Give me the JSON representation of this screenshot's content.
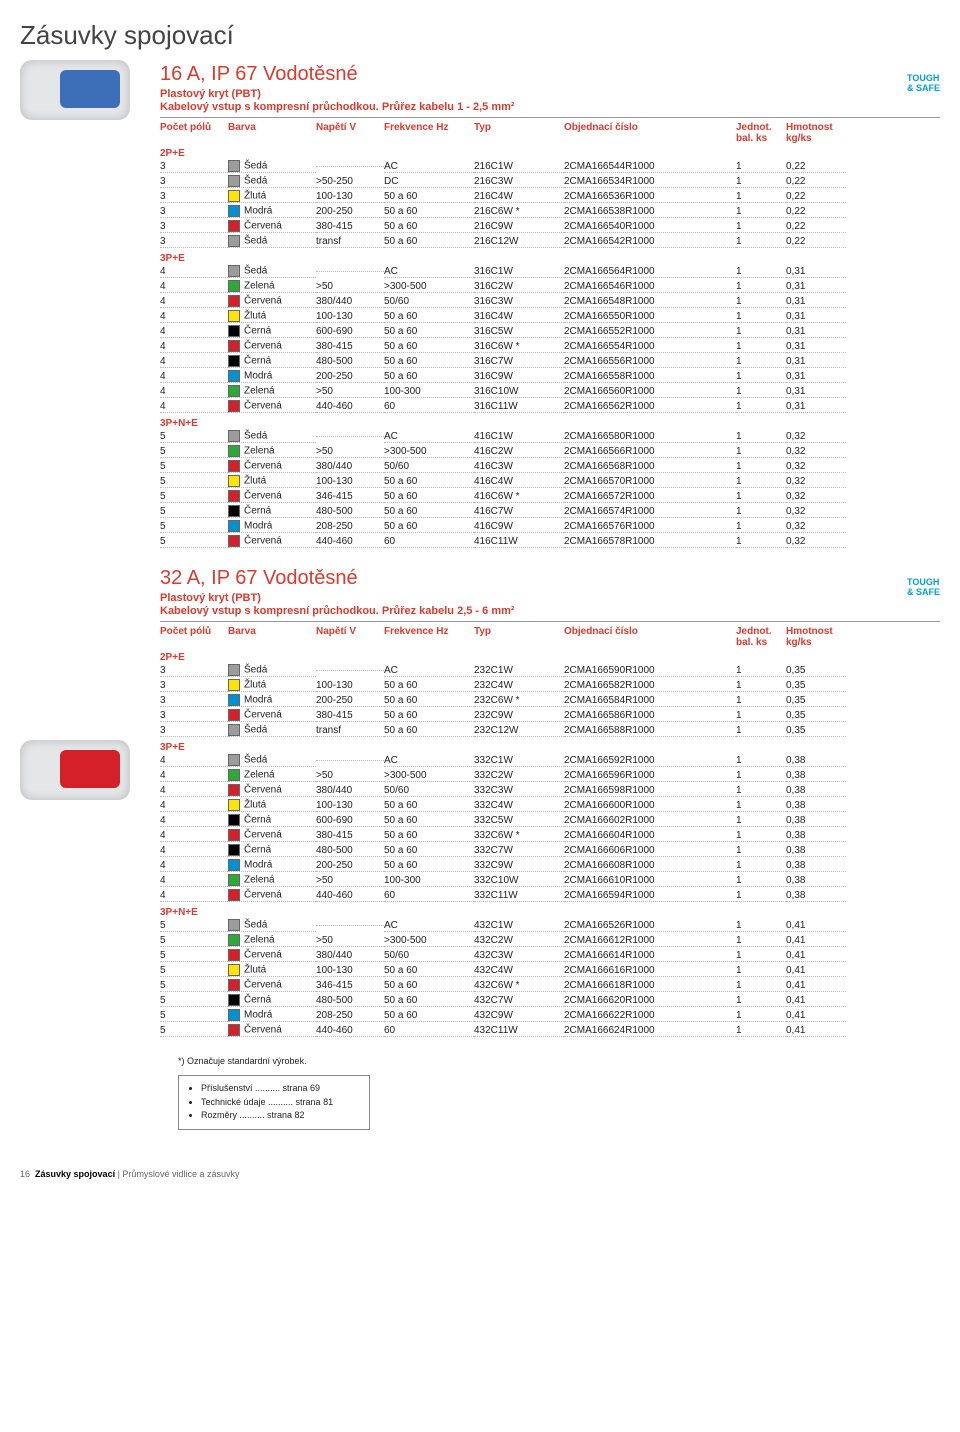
{
  "page_title": "Zásuvky spojovací",
  "tough_safe": {
    "line1": "TOUGH",
    "line2": "& SAFE"
  },
  "header_cols": {
    "poles": "Počet pólů",
    "color": "Barva",
    "volt": "Napětí V",
    "freq": "Frekvence Hz",
    "type": "Typ",
    "order": "Objednací číslo",
    "pack": "Jednot. bal. ks",
    "weight": "Hmotnost kg/ks"
  },
  "colors": {
    "Šedá": "#9c9c9c",
    "Žlutá": "#ffe400",
    "Modrá": "#0091d4",
    "Červená": "#d5202a",
    "Zelená": "#2ea836",
    "Černá": "#000000"
  },
  "sections": [
    {
      "title": "16 A, IP 67 Vodotěsné",
      "sub1": "Plastový kryt (PBT)",
      "sub2": "Kabelový vstup s kompresní průchodkou. Průřez kabelu 1 - 2,5 mm²",
      "plug_color": "#3d6fb8",
      "groups": [
        {
          "label": "2P+E",
          "rows": [
            [
              "3",
              "Šedá",
              "",
              "AC",
              "216C1W",
              "2CMA166544R1000",
              "1",
              "0,22"
            ],
            [
              "3",
              "Šedá",
              ">50-250",
              "DC",
              "216C3W",
              "2CMA166534R1000",
              "1",
              "0,22"
            ],
            [
              "3",
              "Žlutá",
              "100-130",
              "50 a 60",
              "216C4W",
              "2CMA166536R1000",
              "1",
              "0,22"
            ],
            [
              "3",
              "Modrá",
              "200-250",
              "50 a 60",
              "216C6W *",
              "2CMA166538R1000",
              "1",
              "0,22"
            ],
            [
              "3",
              "Červená",
              "380-415",
              "50 a 60",
              "216C9W",
              "2CMA166540R1000",
              "1",
              "0,22"
            ],
            [
              "3",
              "Šedá",
              "transf",
              "50 a 60",
              "216C12W",
              "2CMA166542R1000",
              "1",
              "0,22"
            ]
          ]
        },
        {
          "label": "3P+E",
          "rows": [
            [
              "4",
              "Šedá",
              "",
              "AC",
              "316C1W",
              "2CMA166564R1000",
              "1",
              "0,31"
            ],
            [
              "4",
              "Zelená",
              ">50",
              ">300-500",
              "316C2W",
              "2CMA166546R1000",
              "1",
              "0,31"
            ],
            [
              "4",
              "Červená",
              "380/440",
              "50/60",
              "316C3W",
              "2CMA166548R1000",
              "1",
              "0,31"
            ],
            [
              "4",
              "Žlutá",
              "100-130",
              "50 a 60",
              "316C4W",
              "2CMA166550R1000",
              "1",
              "0,31"
            ],
            [
              "4",
              "Černá",
              "600-690",
              "50 a 60",
              "316C5W",
              "2CMA166552R1000",
              "1",
              "0,31"
            ],
            [
              "4",
              "Červená",
              "380-415",
              "50 a 60",
              "316C6W *",
              "2CMA166554R1000",
              "1",
              "0,31"
            ],
            [
              "4",
              "Černá",
              "480-500",
              "50 a 60",
              "316C7W",
              "2CMA166556R1000",
              "1",
              "0,31"
            ],
            [
              "4",
              "Modrá",
              "200-250",
              "50 a 60",
              "316C9W",
              "2CMA166558R1000",
              "1",
              "0,31"
            ],
            [
              "4",
              "Zelená",
              ">50",
              "100-300",
              "316C10W",
              "2CMA166560R1000",
              "1",
              "0,31"
            ],
            [
              "4",
              "Červená",
              "440-460",
              "60",
              "316C11W",
              "2CMA166562R1000",
              "1",
              "0,31"
            ]
          ]
        },
        {
          "label": "3P+N+E",
          "rows": [
            [
              "5",
              "Šedá",
              "",
              "AC",
              "416C1W",
              "2CMA166580R1000",
              "1",
              "0,32"
            ],
            [
              "5",
              "Zelená",
              ">50",
              ">300-500",
              "416C2W",
              "2CMA166566R1000",
              "1",
              "0,32"
            ],
            [
              "5",
              "Červená",
              "380/440",
              "50/60",
              "416C3W",
              "2CMA166568R1000",
              "1",
              "0,32"
            ],
            [
              "5",
              "Žlutá",
              "100-130",
              "50 a 60",
              "416C4W",
              "2CMA166570R1000",
              "1",
              "0,32"
            ],
            [
              "5",
              "Červená",
              "346-415",
              "50 a 60",
              "416C6W *",
              "2CMA166572R1000",
              "1",
              "0,32"
            ],
            [
              "5",
              "Černá",
              "480-500",
              "50 a 60",
              "416C7W",
              "2CMA166574R1000",
              "1",
              "0,32"
            ],
            [
              "5",
              "Modrá",
              "208-250",
              "50 a 60",
              "416C9W",
              "2CMA166576R1000",
              "1",
              "0,32"
            ],
            [
              "5",
              "Červená",
              "440-460",
              "60",
              "416C11W",
              "2CMA166578R1000",
              "1",
              "0,32"
            ]
          ]
        }
      ]
    },
    {
      "title": "32 A, IP 67 Vodotěsné",
      "sub1": "Plastový kryt (PBT)",
      "sub2": "Kabelový vstup s kompresní průchodkou. Průřez kabelu 2,5 - 6 mm²",
      "plug_color": "#d5202a",
      "groups": [
        {
          "label": "2P+E",
          "rows": [
            [
              "3",
              "Šedá",
              "",
              "AC",
              "232C1W",
              "2CMA166590R1000",
              "1",
              "0,35"
            ],
            [
              "3",
              "Žlutá",
              "100-130",
              "50 a 60",
              "232C4W",
              "2CMA166582R1000",
              "1",
              "0,35"
            ],
            [
              "3",
              "Modrá",
              "200-250",
              "50 a 60",
              "232C6W *",
              "2CMA166584R1000",
              "1",
              "0,35"
            ],
            [
              "3",
              "Červená",
              "380-415",
              "50 a 60",
              "232C9W",
              "2CMA166586R1000",
              "1",
              "0,35"
            ],
            [
              "3",
              "Šedá",
              "transf",
              "50 a 60",
              "232C12W",
              "2CMA166588R1000",
              "1",
              "0,35"
            ]
          ]
        },
        {
          "label": "3P+E",
          "rows": [
            [
              "4",
              "Šedá",
              "",
              "AC",
              "332C1W",
              "2CMA166592R1000",
              "1",
              "0,38"
            ],
            [
              "4",
              "Zelená",
              ">50",
              ">300-500",
              "332C2W",
              "2CMA166596R1000",
              "1",
              "0,38"
            ],
            [
              "4",
              "Červená",
              "380/440",
              "50/60",
              "332C3W",
              "2CMA166598R1000",
              "1",
              "0,38"
            ],
            [
              "4",
              "Žlutá",
              "100-130",
              "50 a 60",
              "332C4W",
              "2CMA166600R1000",
              "1",
              "0,38"
            ],
            [
              "4",
              "Černá",
              "600-690",
              "50 a 60",
              "332C5W",
              "2CMA166602R1000",
              "1",
              "0,38"
            ],
            [
              "4",
              "Červená",
              "380-415",
              "50 a 60",
              "332C6W *",
              "2CMA166604R1000",
              "1",
              "0,38"
            ],
            [
              "4",
              "Černá",
              "480-500",
              "50 a 60",
              "332C7W",
              "2CMA166606R1000",
              "1",
              "0,38"
            ],
            [
              "4",
              "Modrá",
              "200-250",
              "50 a 60",
              "332C9W",
              "2CMA166608R1000",
              "1",
              "0,38"
            ],
            [
              "4",
              "Zelená",
              ">50",
              "100-300",
              "332C10W",
              "2CMA166610R1000",
              "1",
              "0,38"
            ],
            [
              "4",
              "Červená",
              "440-460",
              "60",
              "332C11W",
              "2CMA166594R1000",
              "1",
              "0,38"
            ]
          ]
        },
        {
          "label": "3P+N+E",
          "rows": [
            [
              "5",
              "Šedá",
              "",
              "AC",
              "432C1W",
              "2CMA166526R1000",
              "1",
              "0,41"
            ],
            [
              "5",
              "Zelená",
              ">50",
              ">300-500",
              "432C2W",
              "2CMA166612R1000",
              "1",
              "0,41"
            ],
            [
              "5",
              "Červená",
              "380/440",
              "50/60",
              "432C3W",
              "2CMA166614R1000",
              "1",
              "0,41"
            ],
            [
              "5",
              "Žlutá",
              "100-130",
              "50 a 60",
              "432C4W",
              "2CMA166616R1000",
              "1",
              "0,41"
            ],
            [
              "5",
              "Červená",
              "346-415",
              "50 a 60",
              "432C6W *",
              "2CMA166618R1000",
              "1",
              "0,41"
            ],
            [
              "5",
              "Černá",
              "480-500",
              "50 a 60",
              "432C7W",
              "2CMA166620R1000",
              "1",
              "0,41"
            ],
            [
              "5",
              "Modrá",
              "208-250",
              "50 a 60",
              "432C9W",
              "2CMA166622R1000",
              "1",
              "0,41"
            ],
            [
              "5",
              "Červená",
              "440-460",
              "60",
              "432C11W",
              "2CMA166624R1000",
              "1",
              "0,41"
            ]
          ]
        }
      ]
    }
  ],
  "footnote": "*) Označuje standardní výrobek.",
  "refs": [
    {
      "label": "Příslušenství",
      "page": "strana 69"
    },
    {
      "label": "Technické údaje",
      "page": "strana 81"
    },
    {
      "label": "Rozměry",
      "page": "strana 82"
    }
  ],
  "page_footer_num": "16",
  "page_footer_bold": "Zásuvky spojovací",
  "page_footer_rest": " | Průmyslové vidlice a zásuvky"
}
